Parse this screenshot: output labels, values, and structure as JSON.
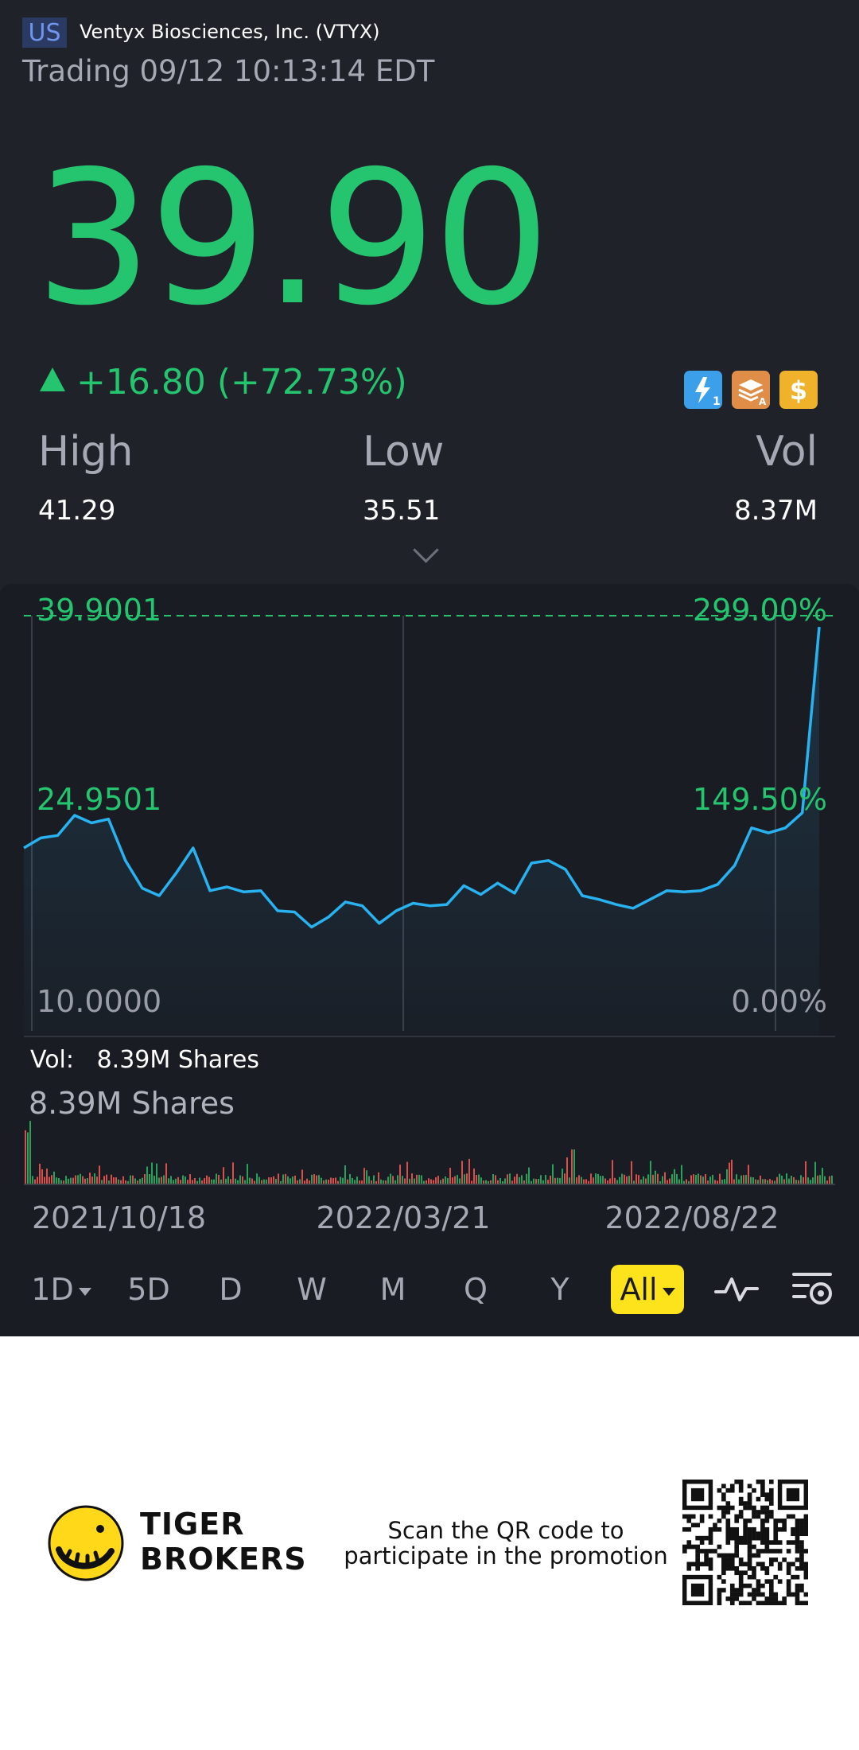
{
  "header": {
    "market": "US",
    "stock_name": "Ventyx Biosciences, Inc. (VTYX)",
    "status": "Trading 09/12 10:13:14 EDT"
  },
  "quote": {
    "price": "39.90",
    "change": "+16.80 (+72.73%)",
    "direction": "up",
    "color_up": "#25c46f"
  },
  "feature_icons": [
    {
      "name": "flash-level1-icon"
    },
    {
      "name": "education-book-icon"
    },
    {
      "name": "dollar-icon"
    }
  ],
  "stats": [
    {
      "label": "High",
      "value": "41.29"
    },
    {
      "label": "Low",
      "value": "35.51"
    },
    {
      "label": "Vol",
      "value": "8.37M"
    }
  ],
  "chart_labels": {
    "y_left": [
      "39.9001",
      "24.9501",
      "10.0000"
    ],
    "y_right": [
      "299.00%",
      "149.50%",
      "0.00%"
    ],
    "volume_readout": "Vol:   8.39M Shares",
    "volume_max": "8.39M Shares"
  },
  "chart_data": [
    {
      "type": "area",
      "series": [
        {
          "values": [
            21.4,
            22.2,
            22.4,
            24.0,
            23.4,
            23.7,
            20.4,
            18.2,
            17.6,
            19.4,
            21.4,
            18.0,
            18.3,
            17.9,
            18.0,
            16.4,
            16.3,
            15.1,
            15.9,
            17.1,
            16.8,
            15.4,
            16.4,
            17.0,
            16.8,
            16.9,
            18.4,
            17.7,
            18.6,
            17.8,
            20.2,
            20.4,
            19.7,
            17.6,
            17.3,
            16.9,
            16.6,
            17.3,
            18.0,
            17.9,
            18.0,
            18.5,
            20.0,
            23.0,
            22.6,
            23.0,
            24.2,
            39.0
          ]
        }
      ],
      "x_labels": [
        "2021/10/18",
        "2022/03/21",
        "2022/08/22"
      ],
      "ylim": [
        10.0,
        39.9001
      ],
      "reference_line": 39.9001,
      "line_color": "#29b2f0",
      "grid": true
    },
    {
      "type": "bar",
      "name": "volume",
      "max_label": "8.39M Shares",
      "colors": {
        "up": "#25a35c",
        "down": "#d8504c"
      }
    }
  ],
  "periods": [
    {
      "label": "1D",
      "dropdown": true,
      "active": false
    },
    {
      "label": "5D",
      "active": false
    },
    {
      "label": "D",
      "active": false
    },
    {
      "label": "W",
      "active": false
    },
    {
      "label": "M",
      "active": false
    },
    {
      "label": "Q",
      "active": false
    },
    {
      "label": "Y",
      "active": false
    },
    {
      "label": "All",
      "dropdown": true,
      "active": true
    }
  ],
  "tools": [
    {
      "name": "indicator-icon"
    },
    {
      "name": "chart-settings-icon"
    }
  ],
  "footer": {
    "brand_line1": "TIGER",
    "brand_line2": "BROKERS",
    "promo_line1": "Scan the QR code to",
    "promo_line2": "participate in the promotion"
  }
}
